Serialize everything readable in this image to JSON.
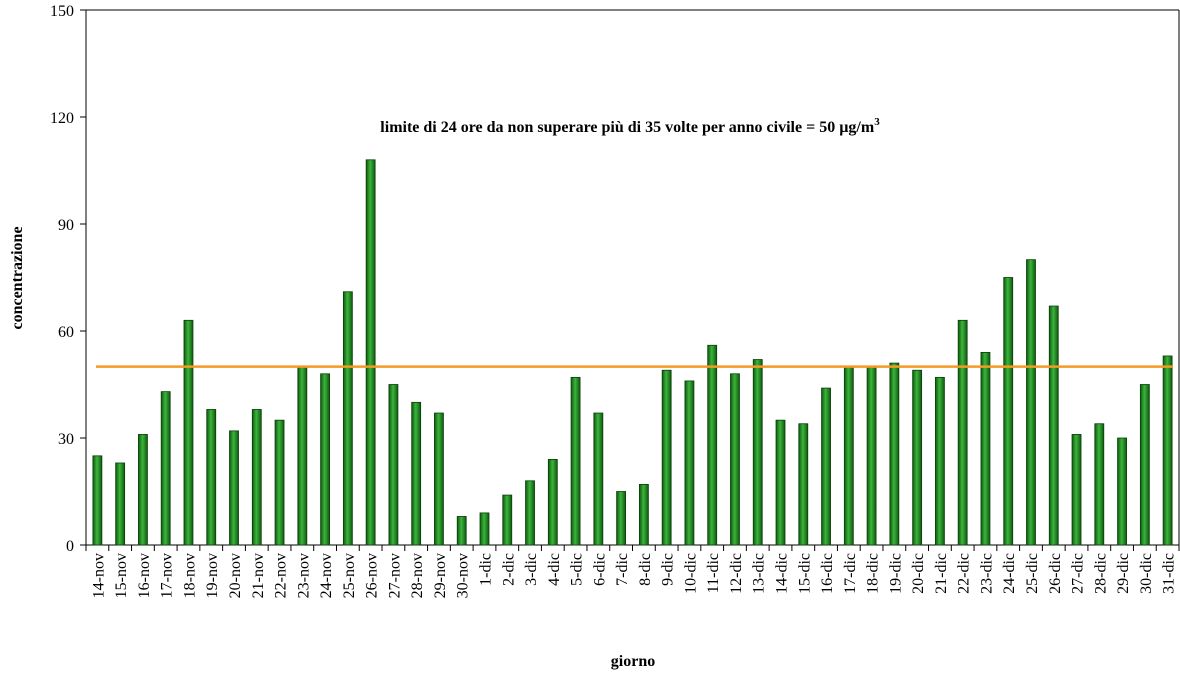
{
  "chart_data": {
    "type": "bar",
    "x_label": "giorno",
    "y_label": "concentrazione",
    "annotation": {
      "text": "limite di 24 ore da non superare più di 35 volte per anno civile = 50 µg/m",
      "superscript": "3"
    },
    "limit": 50,
    "limit_color": "#f59a23",
    "color": "#1f8a1f",
    "categories": [
      "14-nov",
      "15-nov",
      "16-nov",
      "17-nov",
      "18-nov",
      "19-nov",
      "20-nov",
      "21-nov",
      "22-nov",
      "23-nov",
      "24-nov",
      "25-nov",
      "26-nov",
      "27-nov",
      "28-nov",
      "29-nov",
      "30-nov",
      "1-dic",
      "2-dic",
      "3-dic",
      "4-dic",
      "5-dic",
      "6-dic",
      "7-dic",
      "8-dic",
      "9-dic",
      "10-dic",
      "11-dic",
      "12-dic",
      "13-dic",
      "14-dic",
      "15-dic",
      "16-dic",
      "17-dic",
      "18-dic",
      "19-dic",
      "20-dic",
      "21-dic",
      "22-dic",
      "23-dic",
      "24-dic",
      "25-dic",
      "26-dic",
      "27-dic",
      "28-dic",
      "29-dic",
      "30-dic",
      "31-dic"
    ],
    "values": [
      25,
      23,
      31,
      43,
      63,
      38,
      32,
      38,
      35,
      50,
      48,
      71,
      108,
      45,
      40,
      37,
      8,
      9,
      14,
      18,
      24,
      47,
      37,
      15,
      17,
      49,
      46,
      56,
      48,
      52,
      35,
      34,
      44,
      50,
      50,
      51,
      49,
      47,
      63,
      54,
      75,
      80,
      67,
      31,
      34,
      30,
      45,
      53
    ],
    "ylim": [
      0,
      150
    ],
    "yticks": [
      0,
      30,
      60,
      90,
      120,
      150
    ]
  }
}
